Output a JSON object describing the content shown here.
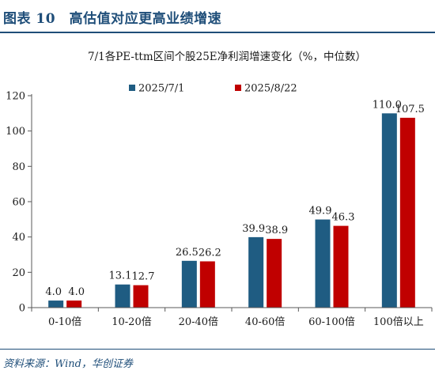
{
  "header": {
    "title": "图表 10　高估值对应更高业绩增速"
  },
  "footer": {
    "source": "资料来源：Wind，华创证券"
  },
  "chart_data": {
    "type": "bar",
    "title": "7/1各PE-ttm区间个股25E净利润增速变化（%，中位数）",
    "xlabel": "",
    "ylabel": "",
    "categories": [
      "0-10倍",
      "10-20倍",
      "20-40倍",
      "40-60倍",
      "60-100倍",
      "100倍以上"
    ],
    "series": [
      {
        "name": "2025/7/1",
        "values": [
          4.0,
          13.1,
          26.5,
          39.9,
          49.9,
          110.0
        ],
        "color": "#1f5c82"
      },
      {
        "name": "2025/8/22",
        "values": [
          4.0,
          12.7,
          26.2,
          38.9,
          46.3,
          107.5
        ],
        "color": "#c00000"
      }
    ],
    "data_labels": [
      [
        "4.0",
        "13.1",
        "26.5",
        "39.9",
        "49.9",
        "110.0"
      ],
      [
        "4.0",
        "12.7",
        "26.2",
        "38.9",
        "46.3",
        "107.5"
      ]
    ],
    "yticks": [
      "0",
      "20",
      "40",
      "60",
      "80",
      "100",
      "120"
    ],
    "ylim": [
      0,
      120
    ],
    "grid": false,
    "legend_position": "top"
  }
}
